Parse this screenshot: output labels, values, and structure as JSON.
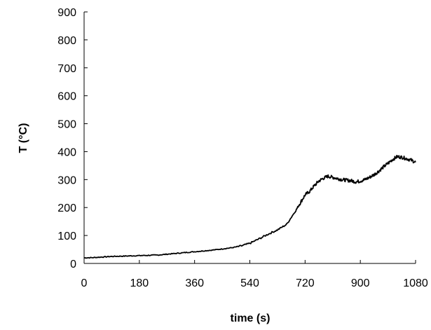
{
  "chart_data": {
    "type": "line",
    "title": "",
    "xlabel": "time (s)",
    "ylabel": "T (°C)",
    "xlim": [
      0,
      1080
    ],
    "ylim": [
      0,
      900
    ],
    "xticks": [
      0,
      180,
      360,
      540,
      720,
      900,
      1080
    ],
    "yticks": [
      0,
      100,
      200,
      300,
      400,
      500,
      600,
      700,
      800,
      900
    ],
    "grid": false,
    "legend": "none",
    "line_color": "#000000",
    "series": [
      {
        "x": [
          0,
          30,
          60,
          90,
          120,
          150,
          180,
          210,
          240,
          270,
          300,
          330,
          360,
          390,
          420,
          450,
          480,
          510,
          540,
          570,
          600,
          630,
          660,
          690,
          705,
          720,
          735,
          750,
          765,
          780,
          795,
          810,
          825,
          840,
          855,
          870,
          885,
          900,
          915,
          930,
          945,
          960,
          975,
          990,
          1005,
          1020,
          1035,
          1050,
          1065,
          1080
        ],
        "y": [
          20,
          21,
          23,
          25,
          26,
          27,
          28,
          29,
          30,
          33,
          36,
          39,
          42,
          45,
          48,
          52,
          56,
          62,
          72,
          88,
          105,
          120,
          140,
          190,
          218,
          245,
          258,
          278,
          295,
          305,
          312,
          308,
          304,
          300,
          298,
          296,
          292,
          295,
          300,
          308,
          318,
          330,
          345,
          358,
          372,
          382,
          380,
          375,
          370,
          362
        ]
      }
    ]
  }
}
